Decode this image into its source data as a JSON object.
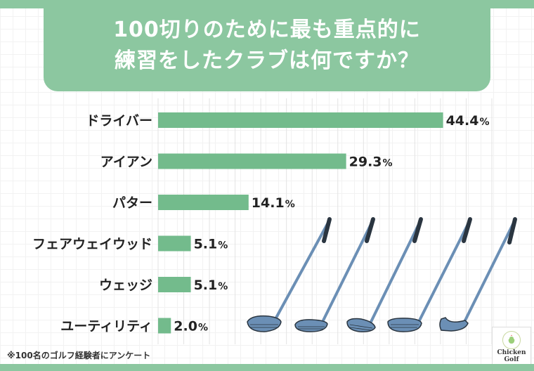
{
  "header": {
    "title_line1": "100切りのために最も重点的に",
    "title_line2": "練習をしたクラブは何ですか？"
  },
  "chart_data": {
    "type": "bar",
    "orientation": "horizontal",
    "title": "100切りのために最も重点的に練習をしたクラブは何ですか？",
    "categories": [
      "ドライバー",
      "アイアン",
      "パター",
      "フェアウェイウッド",
      "ウェッジ",
      "ユーティリティ"
    ],
    "values": [
      44.4,
      29.3,
      14.1,
      5.1,
      5.1,
      2.0
    ],
    "value_labels": [
      "44.4",
      "29.3",
      "14.1",
      "5.1",
      "5.1",
      "2.0"
    ],
    "unit": "%",
    "xlim": [
      0,
      52
    ],
    "grid": true,
    "bar_color": "#73bb8c",
    "gridline_color": "#e3e3e3"
  },
  "footnote": "※100名のゴルフ経験者にアンケート",
  "logo": {
    "line1": "Chicken",
    "line2": "Golf"
  },
  "colors": {
    "accent": "#8cc7a0",
    "bar": "#73bb8c",
    "club": "#6b8fb5",
    "grip": "#2a3540"
  },
  "clubs": [
    "driver-icon",
    "fairway-wood-icon",
    "utility-icon",
    "iron-icon",
    "putter-icon"
  ]
}
